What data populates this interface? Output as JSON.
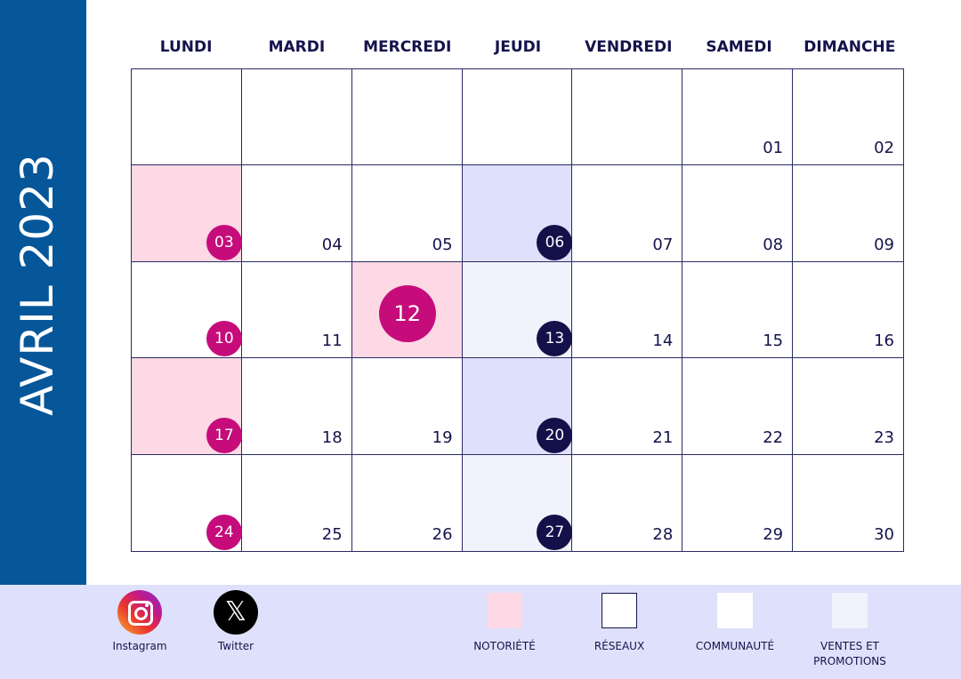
{
  "month_title": "AVRIL 2023",
  "weekdays": [
    "LUNDI",
    "MARDI",
    "MERCREDI",
    "JEUDI",
    "VENDREDI",
    "SAMEDI",
    "DIMANCHE"
  ],
  "colors": {
    "side_band": "#06569a",
    "notoriete": "#fcd9e4",
    "reseaux": "#ffffff",
    "communaute": "#ffffff",
    "ventes": "#f2f2fc",
    "highlight_lavender": "#dfe0fb",
    "magenta_circle": "#c60c7a",
    "navy_circle": "#13104a",
    "text": "#15134b"
  },
  "days": [
    {
      "label": "",
      "bg": "white"
    },
    {
      "label": "",
      "bg": "white"
    },
    {
      "label": "",
      "bg": "white"
    },
    {
      "label": "",
      "bg": "white"
    },
    {
      "label": "",
      "bg": "white"
    },
    {
      "label": "01",
      "bg": "white"
    },
    {
      "label": "02",
      "bg": "white"
    },
    {
      "label": "03",
      "bg": "pink",
      "marker": "magenta"
    },
    {
      "label": "04",
      "bg": "white"
    },
    {
      "label": "05",
      "bg": "white"
    },
    {
      "label": "06",
      "bg": "lav",
      "marker": "navy"
    },
    {
      "label": "07",
      "bg": "white"
    },
    {
      "label": "08",
      "bg": "white"
    },
    {
      "label": "09",
      "bg": "white"
    },
    {
      "label": "10",
      "bg": "white",
      "marker": "magenta"
    },
    {
      "label": "11",
      "bg": "white"
    },
    {
      "label": "12",
      "bg": "pink",
      "marker": "big"
    },
    {
      "label": "13",
      "bg": "pale",
      "marker": "navy"
    },
    {
      "label": "14",
      "bg": "white"
    },
    {
      "label": "15",
      "bg": "white"
    },
    {
      "label": "16",
      "bg": "white"
    },
    {
      "label": "17",
      "bg": "pink",
      "marker": "magenta"
    },
    {
      "label": "18",
      "bg": "white"
    },
    {
      "label": "19",
      "bg": "white"
    },
    {
      "label": "20",
      "bg": "lav",
      "marker": "navy"
    },
    {
      "label": "21",
      "bg": "white"
    },
    {
      "label": "22",
      "bg": "white"
    },
    {
      "label": "23",
      "bg": "white"
    },
    {
      "label": "24",
      "bg": "white",
      "marker": "magenta"
    },
    {
      "label": "25",
      "bg": "white"
    },
    {
      "label": "26",
      "bg": "white"
    },
    {
      "label": "27",
      "bg": "pale",
      "marker": "navy"
    },
    {
      "label": "28",
      "bg": "white"
    },
    {
      "label": "29",
      "bg": "white"
    },
    {
      "label": "30",
      "bg": "white"
    }
  ],
  "social": [
    {
      "icon": "instagram-icon",
      "label": "Instagram"
    },
    {
      "icon": "x-twitter-icon",
      "label": "Twitter"
    }
  ],
  "legend": [
    {
      "label": "NOTORIÉTÉ",
      "color": "#fcd9e4",
      "border": "none"
    },
    {
      "label": "RÉSEAUX",
      "color": "#ffffff",
      "border": "#15134b"
    },
    {
      "label": "COMMUNAUTÉ",
      "color": "#ffffff",
      "border": "none"
    },
    {
      "label": "VENTES ET PROMOTIONS",
      "color": "#f2f2fc",
      "border": "none"
    }
  ]
}
